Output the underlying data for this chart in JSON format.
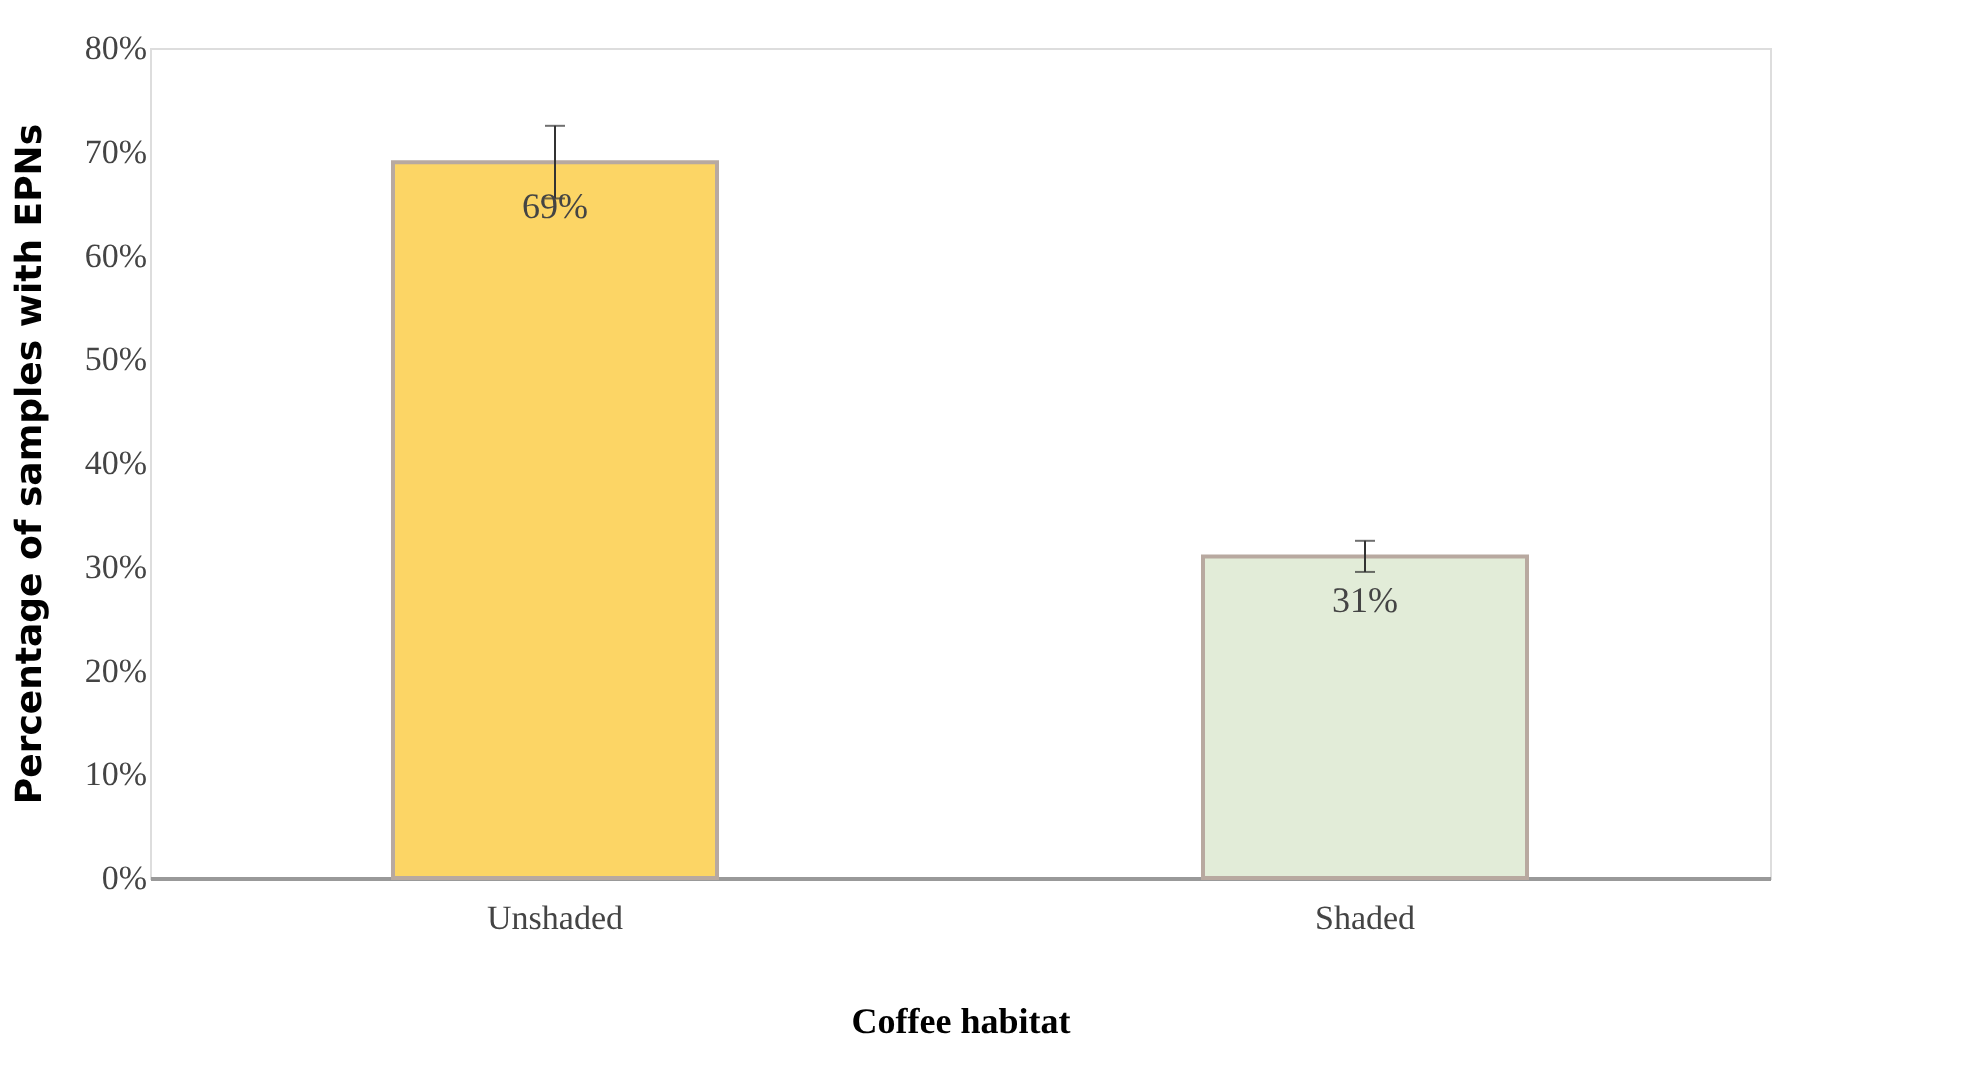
{
  "chart_data": {
    "type": "bar",
    "xlabel": "Coffee habitat",
    "ylabel": "Percentage of samples with EPNs",
    "categories": [
      "Unshaded",
      "Shaded"
    ],
    "values": [
      69,
      31
    ],
    "colors": [
      "#fcd565",
      "#e2ecd8"
    ],
    "errors": [
      3.5,
      1.5
    ],
    "value_labels": [
      "69%",
      "31%"
    ],
    "ylim": [
      0,
      80
    ],
    "yticks": [
      {
        "value": 0,
        "label": "0%"
      },
      {
        "value": 10,
        "label": "10%"
      },
      {
        "value": 20,
        "label": "20%"
      },
      {
        "value": 30,
        "label": "30%"
      },
      {
        "value": 40,
        "label": "40%"
      },
      {
        "value": 50,
        "label": "50%"
      },
      {
        "value": 60,
        "label": "60%"
      },
      {
        "value": 70,
        "label": "70%"
      },
      {
        "value": 80,
        "label": "80%"
      }
    ],
    "grid": false
  }
}
